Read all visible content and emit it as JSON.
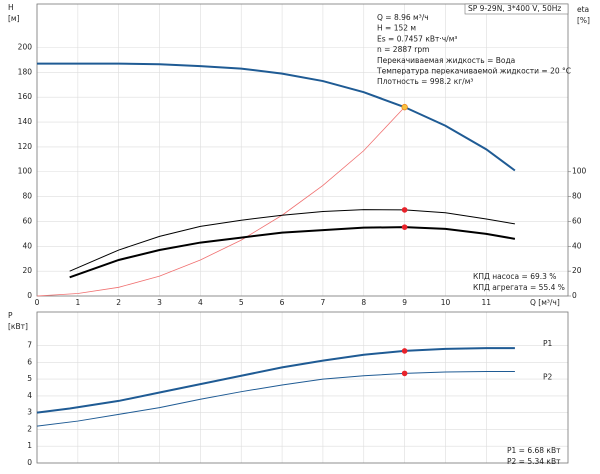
{
  "chart_data": [
    {
      "type": "line",
      "title": "SP 9-29N, 3*400 V, 50Hz",
      "ylabel": "H",
      "yunit": "[м]",
      "y2label": "eta",
      "y2unit": "[%]",
      "xlabel": "Q [м³/ч]",
      "xlim": [
        0,
        13
      ],
      "ylim": [
        0,
        235
      ],
      "y2lim": [
        0,
        235
      ],
      "xticks": [
        0,
        1,
        2,
        3,
        4,
        5,
        6,
        7,
        8,
        9,
        10,
        11
      ],
      "yticks": [
        0,
        20,
        40,
        60,
        80,
        100,
        120,
        140,
        160,
        180,
        200
      ],
      "y2ticks": [
        0,
        20,
        40,
        60,
        80,
        100
      ],
      "grid": true,
      "info": [
        "Q = 8.96 м³/ч",
        "H = 152 м",
        "Es = 0.7457 кВт·ч/м³",
        "n = 2887 rpm",
        "Перекачиваемая жидкость = Вода",
        "Температура перекачиваемой жидкости = 20 °C",
        "Плотность = 998.2 кг/м³"
      ],
      "annotations": [
        "КПД насоса = 69.3 %",
        "КПД агрегата = 55.4 %"
      ],
      "series": [
        {
          "color": "#1f5b94",
          "width": 2,
          "x": [
            0,
            1,
            2,
            3,
            4,
            5,
            6,
            7,
            8,
            9,
            10,
            11,
            11.7
          ],
          "values": [
            187,
            187,
            187,
            186.5,
            185,
            183,
            179,
            173,
            164,
            152,
            137,
            118,
            101
          ]
        },
        {
          "color": "#f07070",
          "width": 0.8,
          "x": [
            0,
            1,
            2,
            3,
            4,
            5,
            6,
            7,
            8,
            9
          ],
          "values": [
            0,
            2,
            7,
            16,
            29,
            45,
            65,
            89,
            117,
            152
          ]
        },
        {
          "color": "#000000",
          "width": 1,
          "axis": "y2",
          "x": [
            0.8,
            2,
            3,
            4,
            5,
            6,
            7,
            8,
            9,
            10,
            11,
            11.7
          ],
          "values": [
            20,
            37,
            48,
            56,
            61,
            65,
            68,
            69.5,
            69.3,
            67,
            62,
            58
          ]
        },
        {
          "color": "#000000",
          "width": 2,
          "axis": "y2",
          "x": [
            0.8,
            2,
            3,
            4,
            5,
            6,
            7,
            8,
            9,
            10,
            11,
            11.7
          ],
          "values": [
            15,
            29,
            37,
            43,
            47,
            51,
            53,
            55,
            55.4,
            54,
            50,
            46
          ]
        },
        {
          "style": "points",
          "color": "#f7c340",
          "x": [
            9
          ],
          "values": [
            152
          ]
        },
        {
          "style": "points",
          "color": "#e8222a",
          "axis": "y2",
          "x": [
            9,
            9
          ],
          "values": [
            69.3,
            55.4
          ]
        }
      ]
    },
    {
      "type": "line",
      "ylabel": "P",
      "yunit": "[кВт]",
      "xlim": [
        0,
        13
      ],
      "ylim": [
        0,
        9
      ],
      "yticks": [
        0,
        1,
        2,
        3,
        4,
        5,
        6,
        7
      ],
      "grid": true,
      "annotations": [
        "P1 = 6.68 кВт",
        "P2 = 5.34 кВт"
      ],
      "series": [
        {
          "name": "P1",
          "color": "#1f5b94",
          "width": 2,
          "x": [
            0,
            0.8,
            2,
            3,
            4,
            5,
            6,
            7,
            8,
            9,
            10,
            11,
            11.7
          ],
          "values": [
            3.0,
            3.25,
            3.7,
            4.2,
            4.7,
            5.2,
            5.7,
            6.1,
            6.45,
            6.68,
            6.8,
            6.85,
            6.85
          ]
        },
        {
          "name": "P2",
          "color": "#1f5b94",
          "width": 1,
          "x": [
            0,
            1,
            2,
            3,
            4,
            5,
            6,
            7,
            8,
            9,
            10,
            11,
            11.7
          ],
          "values": [
            2.2,
            2.5,
            2.9,
            3.3,
            3.8,
            4.25,
            4.65,
            5.0,
            5.2,
            5.34,
            5.42,
            5.45,
            5.45
          ]
        },
        {
          "style": "points",
          "color": "#e8222a",
          "x": [
            9,
            9
          ],
          "values": [
            6.68,
            5.34
          ]
        }
      ]
    }
  ]
}
